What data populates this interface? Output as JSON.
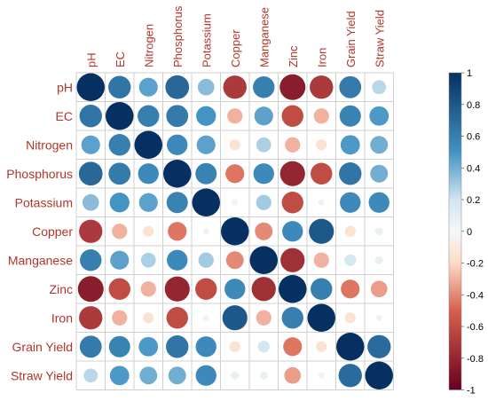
{
  "chart_data": {
    "type": "heatmap",
    "variables": [
      "pH",
      "EC",
      "Nitrogen",
      "Phosphorus",
      "Potassium",
      "Copper",
      "Manganese",
      "Zinc",
      "Iron",
      "Grain Yield",
      "Straw Yield"
    ],
    "matrix": [
      [
        1.0,
        0.65,
        0.45,
        0.72,
        0.35,
        -0.7,
        0.6,
        -0.85,
        -0.7,
        0.62,
        0.25
      ],
      [
        0.65,
        1.0,
        0.6,
        0.62,
        0.5,
        -0.3,
        0.45,
        -0.6,
        -0.3,
        0.58,
        0.48
      ],
      [
        0.45,
        0.6,
        1.0,
        0.55,
        0.45,
        -0.15,
        0.28,
        -0.3,
        -0.15,
        0.48,
        0.4
      ],
      [
        0.72,
        0.62,
        0.55,
        1.0,
        0.58,
        -0.45,
        0.55,
        -0.8,
        -0.6,
        0.65,
        0.4
      ],
      [
        0.35,
        0.5,
        0.45,
        0.58,
        1.0,
        -0.05,
        0.3,
        -0.6,
        -0.05,
        0.55,
        0.55
      ],
      [
        -0.7,
        -0.3,
        -0.15,
        -0.45,
        -0.05,
        1.0,
        -0.4,
        0.55,
        0.8,
        -0.15,
        0.08
      ],
      [
        0.6,
        0.45,
        0.28,
        0.55,
        0.3,
        -0.4,
        1.0,
        -0.75,
        -0.3,
        0.18,
        0.08
      ],
      [
        -0.85,
        -0.6,
        -0.3,
        -0.8,
        -0.6,
        0.55,
        -0.75,
        1.0,
        0.6,
        -0.45,
        -0.35
      ],
      [
        -0.7,
        -0.3,
        -0.15,
        -0.6,
        -0.05,
        0.8,
        -0.3,
        0.6,
        1.0,
        -0.15,
        0.05
      ],
      [
        0.62,
        0.58,
        0.48,
        0.65,
        0.55,
        -0.15,
        0.18,
        -0.45,
        -0.15,
        1.0,
        0.7
      ],
      [
        0.25,
        0.48,
        0.4,
        0.4,
        0.55,
        0.08,
        0.08,
        -0.35,
        0.05,
        0.7,
        1.0
      ]
    ],
    "colorbar": {
      "range": [
        -1,
        1
      ],
      "ticks": [
        "1",
        "0.8",
        "0.6",
        "0.4",
        "0.2",
        "0",
        "-0.2",
        "-0.4",
        "-0.6",
        "-0.8",
        "-1"
      ]
    },
    "palette": {
      "negative_end": "#67001f",
      "neg_mid": "#d6604d",
      "neg_light": "#fddbc7",
      "zero": "#f7f7f7",
      "pos_light": "#d1e5f0",
      "pos_mid": "#4393c3",
      "positive_end": "#053061"
    },
    "label_color": "#b2352b",
    "grid": true
  }
}
